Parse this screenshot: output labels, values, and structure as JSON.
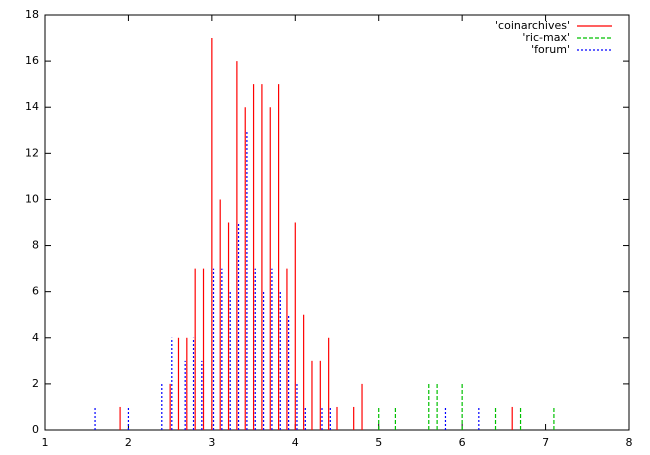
{
  "chart_data": {
    "type": "impulse",
    "xlim": [
      1,
      8
    ],
    "ylim": [
      0,
      18
    ],
    "xticks": [
      1,
      2,
      3,
      4,
      5,
      6,
      7,
      8
    ],
    "yticks": [
      0,
      2,
      4,
      6,
      8,
      10,
      12,
      14,
      16,
      18
    ],
    "legend": "top-right",
    "series": [
      {
        "name": "'coinarchives'",
        "color": "#ff0000",
        "linestyle": "solid",
        "x": [
          1.9,
          2.5,
          2.6,
          2.7,
          2.8,
          2.9,
          3.0,
          3.1,
          3.2,
          3.3,
          3.4,
          3.5,
          3.6,
          3.7,
          3.8,
          3.9,
          4.0,
          4.1,
          4.2,
          4.3,
          4.4,
          4.5,
          4.7,
          4.8,
          6.6
        ],
        "values": [
          1,
          2,
          4,
          4,
          7,
          7,
          17,
          10,
          9,
          16,
          14,
          15,
          15,
          14,
          15,
          7,
          9,
          5,
          3,
          3,
          4,
          1,
          1,
          2,
          1
        ]
      },
      {
        "name": "'ric-max'",
        "color": "#00c000",
        "linestyle": "dashed",
        "x": [
          5.0,
          5.2,
          5.6,
          5.7,
          6.0,
          6.4,
          6.7,
          7.1
        ],
        "values": [
          1,
          1,
          2,
          2,
          2,
          1,
          1,
          1
        ]
      },
      {
        "name": "'forum'",
        "color": "#0000ff",
        "linestyle": "dotted",
        "x": [
          1.6,
          2.0,
          2.4,
          2.52,
          2.68,
          2.78,
          2.88,
          3.02,
          3.12,
          3.22,
          3.32,
          3.42,
          3.52,
          3.62,
          3.72,
          3.82,
          3.92,
          4.02,
          4.12,
          4.32,
          4.42,
          5.8,
          6.2
        ],
        "values": [
          1,
          1,
          2,
          4,
          3,
          4,
          3,
          7,
          7,
          6,
          9,
          13,
          7,
          6,
          7,
          6,
          5,
          2,
          1,
          1,
          1,
          1,
          1
        ]
      }
    ]
  }
}
